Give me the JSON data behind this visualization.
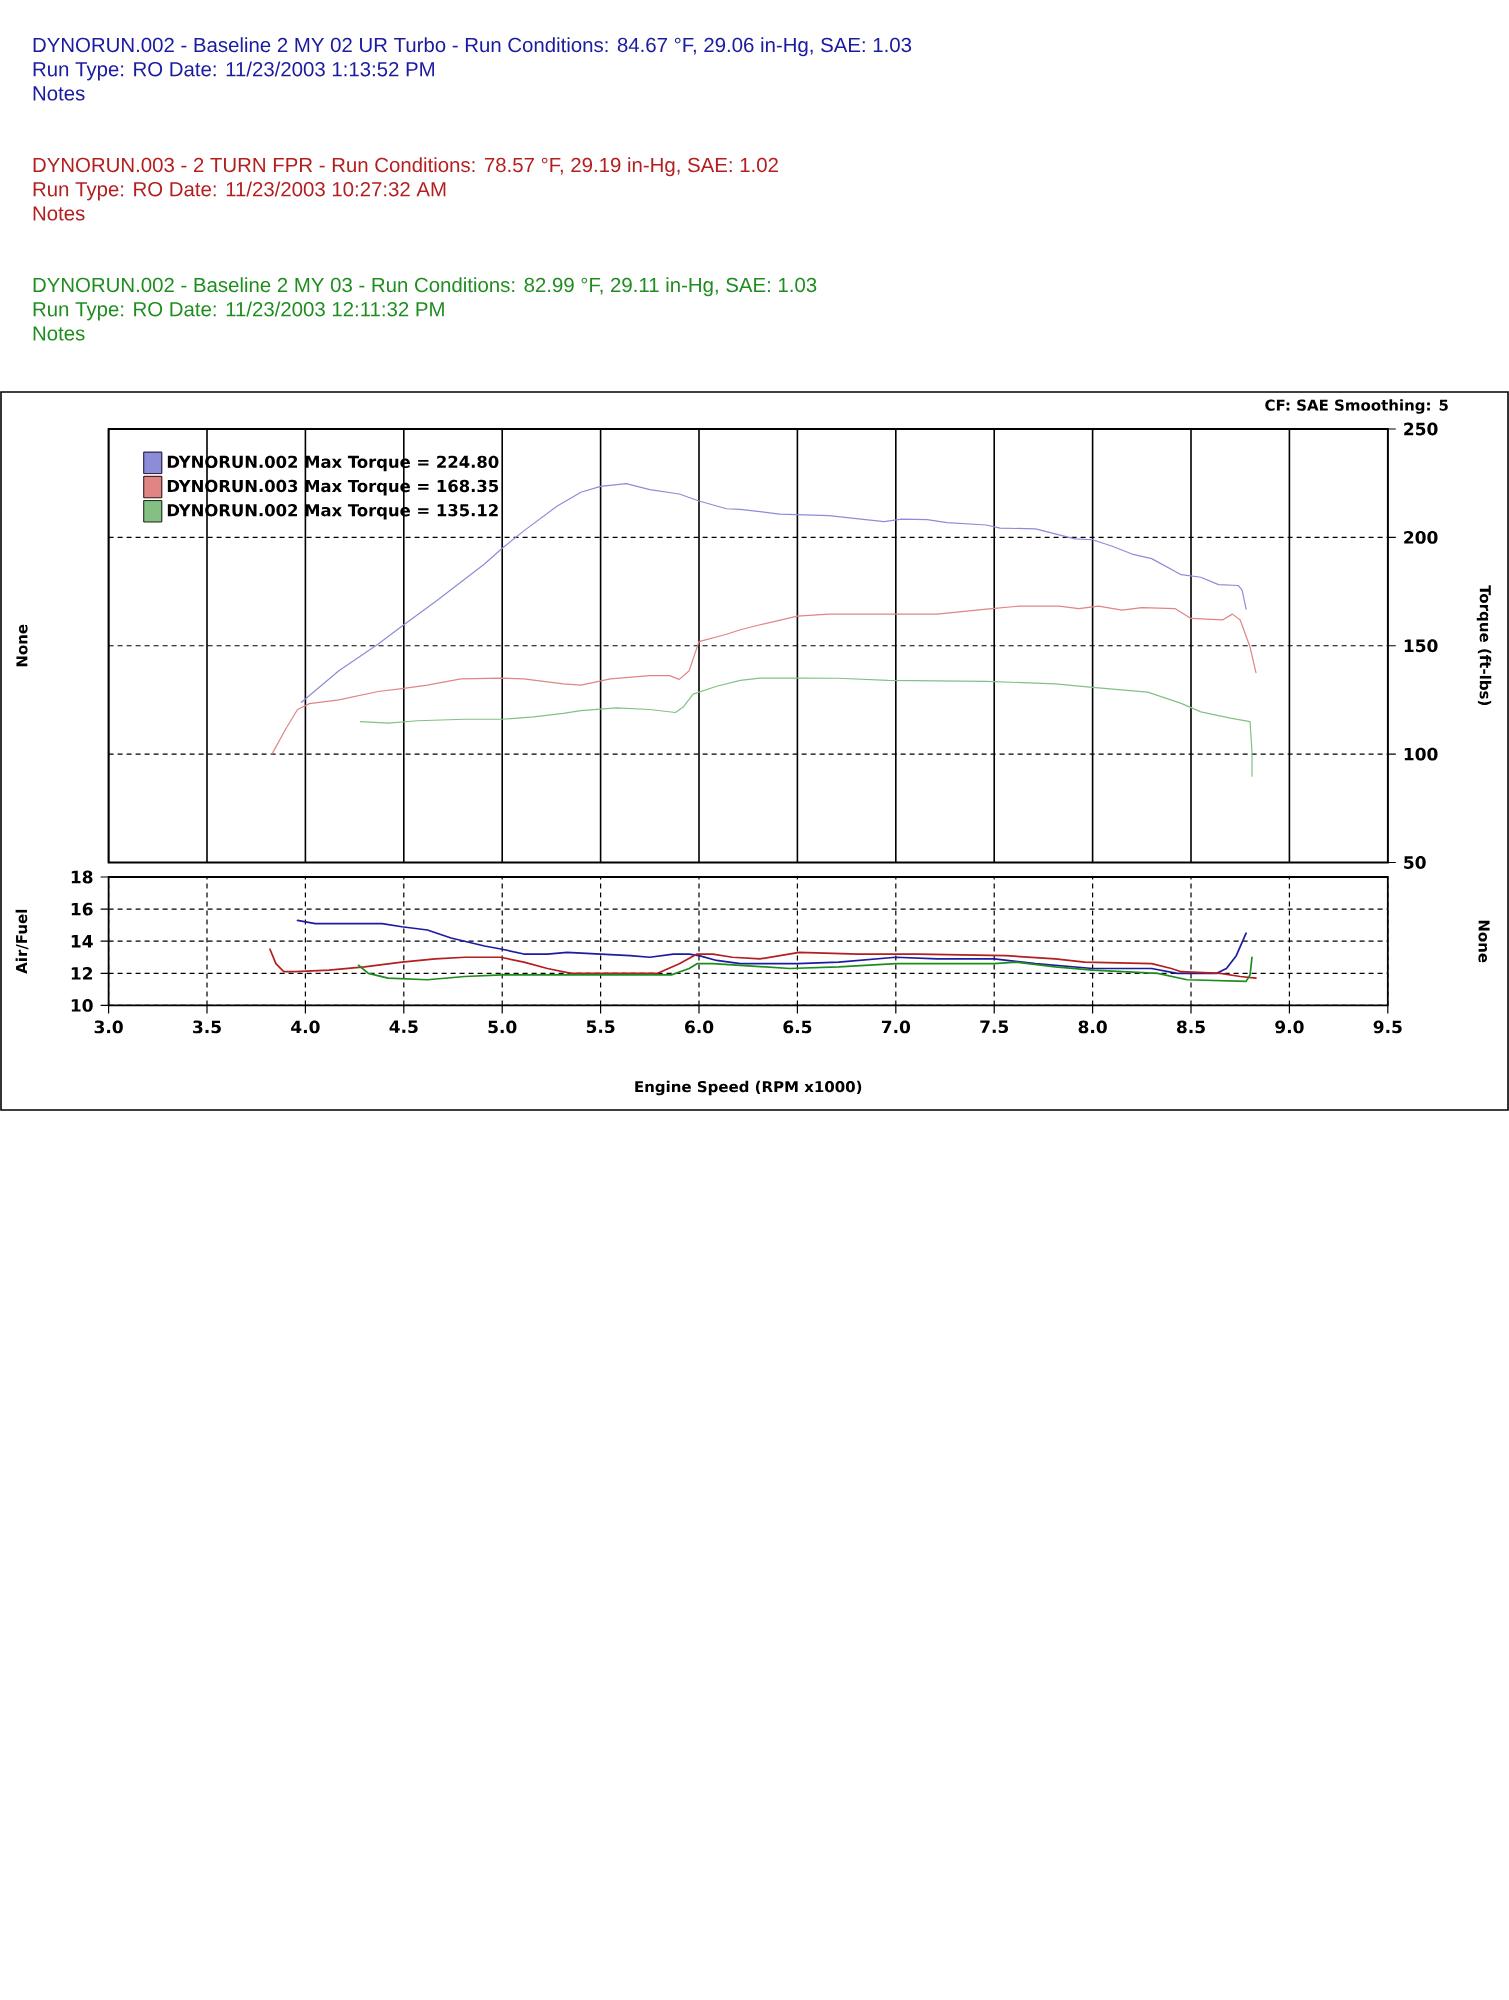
{
  "chart_data": [
    {
      "type": "other",
      "annotations": [
        "DYNORUN.002 - Baseline 2 MY 02 UR Turbo - Run Conditions: 84.67 °F, 29.06 in-Hg, SAE: 1.03",
        "Run Type: RO Date: 11/23/2003 1:13:52 PM",
        "Notes",
        "DYNORUN.003 - 2 TURN FPR - Run Conditions: 78.57 °F, 29.19 in-Hg, SAE: 1.02",
        "Run Type: RO Date: 11/23/2003 10:27:32 AM",
        "Notes",
        "DYNORUN.002 - Baseline 2 MY 03 - Run Conditions: 82.99 °F, 29.11 in-Hg, SAE: 1.03",
        "Run Type: RO Date: 11/23/2003 12:11:32 PM",
        "Notes"
      ]
    },
    {
      "type": "line",
      "ylabel": "None",
      "y2label": "Torque (ft-lbs)",
      "annotations": [
        "CF: SAE Smoothing: 5"
      ],
      "xlim": [
        3,
        9.5
      ],
      "xticks": [
        3,
        3.5,
        4,
        4.5,
        5,
        5.5,
        6,
        6.5,
        7,
        7.5,
        8,
        8.5,
        9,
        9.5
      ],
      "y2lim": [
        50,
        250
      ],
      "y2ticks": [
        50,
        100,
        150,
        200,
        250
      ],
      "tick_labels": "y",
      "grid": true,
      "legend": "top left",
      "series": [
        {
          "name": "DYNORUN.002 Max Torque = 224.80",
          "color": "#8c8cd8",
          "axis": "y2",
          "x": [
            3.98,
            4.17,
            4.37,
            4.49,
            4.67,
            4.91,
            5.0,
            5.11,
            5.28,
            5.4,
            5.5,
            5.63,
            5.75,
            5.9,
            6.0,
            6.14,
            6.21,
            6.31,
            6.41,
            6.66,
            6.94,
            7.03,
            7.16,
            7.26,
            7.46,
            7.53,
            7.71,
            7.91,
            8.0,
            8.1,
            8.2,
            8.3,
            8.45,
            8.55,
            8.64,
            8.74,
            8.76,
            8.78
          ],
          "values": [
            123.9,
            138.5,
            150.8,
            159.0,
            171.0,
            187.7,
            195.0,
            203.0,
            214.5,
            220.8,
            223.5,
            224.8,
            222.0,
            220.0,
            216.8,
            213.2,
            212.9,
            211.9,
            210.7,
            210.0,
            207.3,
            208.4,
            208.2,
            206.8,
            205.7,
            204.3,
            203.9,
            199.3,
            198.9,
            195.9,
            192.3,
            190.2,
            182.8,
            181.6,
            178.2,
            177.8,
            175.5,
            166.9
          ]
        },
        {
          "name": "DYNORUN.003 Max Torque = 168.35",
          "color": "#e08484",
          "axis": "y2",
          "x": [
            3.83,
            3.9,
            3.96,
            4.02,
            4.17,
            4.37,
            4.49,
            4.62,
            4.79,
            5.0,
            5.11,
            5.31,
            5.4,
            5.55,
            5.75,
            5.85,
            5.9,
            5.95,
            6.0,
            6.14,
            6.21,
            6.31,
            6.5,
            6.66,
            6.96,
            7.21,
            7.46,
            7.63,
            7.83,
            7.93,
            8.03,
            8.15,
            8.25,
            8.42,
            8.5,
            8.66,
            8.71,
            8.75,
            8.8,
            8.83
          ],
          "values": [
            100.0,
            111.6,
            120.6,
            123.3,
            125.0,
            128.9,
            130.2,
            131.8,
            134.7,
            135.1,
            134.7,
            132.4,
            131.8,
            134.7,
            136.2,
            136.2,
            134.5,
            138.5,
            151.9,
            155.3,
            157.4,
            159.7,
            163.7,
            164.6,
            164.6,
            164.6,
            166.9,
            168.3,
            168.3,
            167.1,
            168.3,
            166.4,
            167.6,
            167.1,
            162.6,
            161.9,
            164.6,
            161.9,
            149.4,
            137.6
          ]
        },
        {
          "name": "DYNORUN.002 Max Torque = 135.12",
          "color": "#84c084",
          "axis": "y2",
          "x": [
            4.28,
            4.42,
            4.57,
            4.81,
            5.0,
            5.16,
            5.31,
            5.4,
            5.58,
            5.75,
            5.88,
            5.92,
            5.97,
            6.09,
            6.21,
            6.31,
            6.5,
            6.71,
            6.96,
            7.46,
            7.81,
            8.0,
            8.28,
            8.45,
            8.55,
            8.7,
            8.8,
            8.81,
            8.81
          ],
          "values": [
            115.0,
            114.3,
            115.4,
            116.1,
            116.1,
            117.2,
            118.8,
            120.1,
            121.3,
            120.6,
            119.2,
            121.7,
            127.7,
            131.3,
            134.0,
            135.1,
            135.1,
            135.0,
            134.0,
            133.6,
            132.4,
            130.8,
            128.6,
            123.4,
            119.5,
            116.6,
            115.0,
            100.7,
            89.8
          ]
        }
      ]
    },
    {
      "type": "line",
      "xlabel": "Engine Speed (RPM x1000)",
      "ylabel": "Air/Fuel",
      "y2label": "None",
      "xlim": [
        3,
        9.5
      ],
      "xticks": [
        {
          "value": 3,
          "label": "3.0"
        },
        3.5,
        {
          "value": 4,
          "label": "4.0"
        },
        4.5,
        {
          "value": 5,
          "label": "5.0"
        },
        5.5,
        {
          "value": 6,
          "label": "6.0"
        },
        6.5,
        {
          "value": 7,
          "label": "7.0"
        },
        7.5,
        {
          "value": 8,
          "label": "8.0"
        },
        8.5,
        {
          "value": 9,
          "label": "9.0"
        },
        9.5
      ],
      "ylim": [
        10,
        18
      ],
      "yticks": [
        10,
        12,
        14,
        16,
        18
      ],
      "grid": true,
      "series": [
        {
          "color": "#1c1ca0",
          "x": [
            3.96,
            4.05,
            4.39,
            4.49,
            4.62,
            4.74,
            4.91,
            5.0,
            5.11,
            5.23,
            5.33,
            5.5,
            5.65,
            5.75,
            5.87,
            5.95,
            6.0,
            6.09,
            6.21,
            6.5,
            6.71,
            7.0,
            7.21,
            7.5,
            7.71,
            8.0,
            8.3,
            8.43,
            8.63,
            8.68,
            8.73,
            8.78
          ],
          "values": [
            15.3,
            15.1,
            15.1,
            14.9,
            14.7,
            14.2,
            13.7,
            13.5,
            13.2,
            13.2,
            13.3,
            13.2,
            13.1,
            13.0,
            13.2,
            13.2,
            13.1,
            12.8,
            12.6,
            12.6,
            12.7,
            13.0,
            12.9,
            12.9,
            12.6,
            12.3,
            12.3,
            12.0,
            12.0,
            12.3,
            13.1,
            14.5
          ]
        },
        {
          "color": "#b41e1e",
          "x": [
            3.82,
            3.85,
            3.89,
            3.95,
            4.12,
            4.3,
            4.49,
            4.66,
            4.81,
            4.99,
            5.11,
            5.23,
            5.35,
            5.79,
            5.9,
            5.99,
            6.07,
            6.17,
            6.31,
            6.51,
            6.81,
            7.11,
            7.56,
            7.81,
            7.96,
            8.3,
            8.4,
            8.45,
            8.65,
            8.75,
            8.83
          ],
          "values": [
            13.5,
            12.6,
            12.1,
            12.1,
            12.2,
            12.4,
            12.7,
            12.9,
            13.0,
            13.0,
            12.7,
            12.3,
            12.0,
            12.0,
            12.6,
            13.2,
            13.2,
            13.0,
            12.9,
            13.3,
            13.2,
            13.2,
            13.1,
            12.9,
            12.7,
            12.6,
            12.3,
            12.1,
            12.0,
            11.8,
            11.7
          ]
        },
        {
          "color": "#1e8c1e",
          "x": [
            4.27,
            4.32,
            4.42,
            4.62,
            4.81,
            5.0,
            5.21,
            5.86,
            5.95,
            5.99,
            6.07,
            6.21,
            6.46,
            6.71,
            7.0,
            7.5,
            7.61,
            7.81,
            8.0,
            8.33,
            8.48,
            8.78,
            8.8,
            8.81
          ],
          "values": [
            12.5,
            12.0,
            11.7,
            11.6,
            11.8,
            11.9,
            11.9,
            11.9,
            12.3,
            12.6,
            12.6,
            12.5,
            12.3,
            12.4,
            12.6,
            12.6,
            12.7,
            12.4,
            12.2,
            12.0,
            11.6,
            11.5,
            11.9,
            13.0
          ]
        }
      ]
    }
  ]
}
